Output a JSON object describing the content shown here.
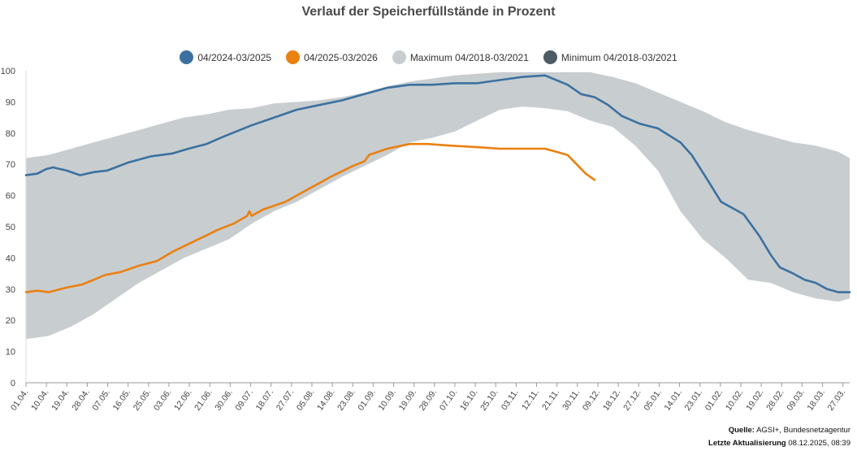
{
  "chart_data": {
    "type": "area",
    "title": "Verlauf der Speicherfüllstände in Prozent",
    "ylim": [
      0,
      100
    ],
    "yticks": [
      "0",
      "10",
      "20",
      "30",
      "40",
      "50",
      "60",
      "70",
      "80",
      "90",
      "100"
    ],
    "xticks": [
      "01.04.",
      "10.04.",
      "19.04.",
      "28.04.",
      "07.05.",
      "16.05.",
      "25.05.",
      "03.06.",
      "12.06.",
      "21.06.",
      "30.06.",
      "09.07.",
      "18.07.",
      "27.07.",
      "05.08.",
      "14.08.",
      "23.08.",
      "01.09.",
      "10.09.",
      "19.09.",
      "28.09.",
      "07.10.",
      "16.10.",
      "25.10.",
      "03.11.",
      "12.11.",
      "21.11.",
      "30.11.",
      "09.12.",
      "18.12.",
      "27.12.",
      "05.01.",
      "14.01.",
      "23.01.",
      "01.02.",
      "10.02.",
      "19.02.",
      "28.02.",
      "09.03.",
      "18.03.",
      "27.03."
    ],
    "x_axis_days": 365,
    "legend": [
      {
        "name": "04/2024-03/2025",
        "color": "#3b71a0"
      },
      {
        "name": "04/2025-03/2026",
        "color": "#ea8010"
      },
      {
        "name": "Maximum 04/2018-03/2021",
        "color": "#c8cdd0"
      },
      {
        "name": "Minimum 04/2018-03/2021",
        "color": "#4d5b64"
      }
    ],
    "band": {
      "color": "#c8cdd0",
      "max": [
        [
          0,
          72
        ],
        [
          10,
          73
        ],
        [
          20,
          75
        ],
        [
          30,
          77
        ],
        [
          40,
          79
        ],
        [
          50,
          81
        ],
        [
          60,
          83
        ],
        [
          70,
          85
        ],
        [
          80,
          86
        ],
        [
          90,
          87.5
        ],
        [
          100,
          88
        ],
        [
          110,
          89.5
        ],
        [
          120,
          90
        ],
        [
          130,
          90.5
        ],
        [
          140,
          91.5
        ],
        [
          150,
          93
        ],
        [
          160,
          95
        ],
        [
          170,
          96.5
        ],
        [
          180,
          97.5
        ],
        [
          190,
          98.5
        ],
        [
          200,
          99
        ],
        [
          210,
          99.5
        ],
        [
          220,
          99.5
        ],
        [
          230,
          99.5
        ],
        [
          240,
          99.5
        ],
        [
          250,
          99.5
        ],
        [
          260,
          98
        ],
        [
          270,
          96
        ],
        [
          280,
          93
        ],
        [
          290,
          90
        ],
        [
          300,
          87
        ],
        [
          310,
          83.5
        ],
        [
          320,
          81
        ],
        [
          330,
          79
        ],
        [
          340,
          77
        ],
        [
          350,
          76
        ],
        [
          360,
          74
        ],
        [
          365,
          72
        ]
      ],
      "min": [
        [
          0,
          14
        ],
        [
          10,
          15
        ],
        [
          20,
          18
        ],
        [
          30,
          22
        ],
        [
          40,
          27
        ],
        [
          50,
          32
        ],
        [
          60,
          36
        ],
        [
          70,
          40
        ],
        [
          80,
          43
        ],
        [
          90,
          46
        ],
        [
          100,
          51
        ],
        [
          110,
          55
        ],
        [
          120,
          58
        ],
        [
          130,
          62
        ],
        [
          140,
          66
        ],
        [
          150,
          69.5
        ],
        [
          160,
          73
        ],
        [
          170,
          77
        ],
        [
          180,
          78.5
        ],
        [
          190,
          80.5
        ],
        [
          200,
          84
        ],
        [
          210,
          87.5
        ],
        [
          220,
          88.5
        ],
        [
          230,
          88
        ],
        [
          240,
          87
        ],
        [
          250,
          84
        ],
        [
          260,
          82
        ],
        [
          270,
          76
        ],
        [
          280,
          68
        ],
        [
          290,
          55
        ],
        [
          300,
          46
        ],
        [
          310,
          40
        ],
        [
          320,
          33
        ],
        [
          330,
          32
        ],
        [
          340,
          29
        ],
        [
          350,
          27
        ],
        [
          360,
          26
        ],
        [
          365,
          27
        ]
      ]
    },
    "series": [
      {
        "name": "04/2024-03/2025",
        "color": "#3b71a0",
        "points": [
          [
            0,
            66.5
          ],
          [
            5,
            67
          ],
          [
            9,
            68.5
          ],
          [
            12,
            69
          ],
          [
            18,
            68
          ],
          [
            24,
            66.5
          ],
          [
            30,
            67.5
          ],
          [
            36,
            68
          ],
          [
            45,
            70.5
          ],
          [
            55,
            72.5
          ],
          [
            65,
            73.5
          ],
          [
            72,
            75
          ],
          [
            80,
            76.5
          ],
          [
            88,
            79
          ],
          [
            100,
            82.5
          ],
          [
            110,
            85
          ],
          [
            120,
            87.5
          ],
          [
            130,
            89
          ],
          [
            140,
            90.5
          ],
          [
            150,
            92.5
          ],
          [
            160,
            94.5
          ],
          [
            170,
            95.5
          ],
          [
            180,
            95.5
          ],
          [
            190,
            96
          ],
          [
            200,
            96
          ],
          [
            210,
            97
          ],
          [
            220,
            98
          ],
          [
            230,
            98.5
          ],
          [
            240,
            95.5
          ],
          [
            246,
            92.5
          ],
          [
            252,
            91.5
          ],
          [
            258,
            89
          ],
          [
            264,
            85.5
          ],
          [
            272,
            83
          ],
          [
            280,
            81.5
          ],
          [
            290,
            77
          ],
          [
            295,
            73
          ],
          [
            302,
            65
          ],
          [
            308,
            58
          ],
          [
            318,
            54
          ],
          [
            325,
            47
          ],
          [
            330,
            41
          ],
          [
            334,
            37
          ],
          [
            340,
            35
          ],
          [
            345,
            33
          ],
          [
            350,
            32
          ],
          [
            355,
            30
          ],
          [
            360,
            29
          ],
          [
            365,
            29
          ]
        ]
      },
      {
        "name": "04/2025-03/2026",
        "color": "#ea8010",
        "points": [
          [
            0,
            29
          ],
          [
            5,
            29.5
          ],
          [
            10,
            29
          ],
          [
            18,
            30.5
          ],
          [
            25,
            31.5
          ],
          [
            30,
            33
          ],
          [
            35,
            34.5
          ],
          [
            42,
            35.5
          ],
          [
            50,
            37.5
          ],
          [
            58,
            39
          ],
          [
            65,
            42
          ],
          [
            75,
            45.5
          ],
          [
            85,
            49
          ],
          [
            92,
            51
          ],
          [
            98,
            53.5
          ],
          [
            99,
            55
          ],
          [
            100,
            53.5
          ],
          [
            105,
            55.5
          ],
          [
            115,
            58
          ],
          [
            125,
            62
          ],
          [
            135,
            66
          ],
          [
            145,
            69.5
          ],
          [
            150,
            71
          ],
          [
            152,
            73
          ],
          [
            160,
            75
          ],
          [
            170,
            76.5
          ],
          [
            178,
            76.5
          ],
          [
            188,
            76
          ],
          [
            200,
            75.5
          ],
          [
            210,
            75
          ],
          [
            220,
            75
          ],
          [
            230,
            75
          ],
          [
            235,
            74
          ],
          [
            240,
            73
          ],
          [
            244,
            70
          ],
          [
            248,
            67
          ],
          [
            252,
            65
          ]
        ]
      }
    ]
  },
  "footer": {
    "source_label": "Quelle:",
    "source_value": "AGSI+, Bundesnetzagentur",
    "updated_label": "Letzte Aktualisierung",
    "updated_value": "08.12.2025, 08:39"
  }
}
